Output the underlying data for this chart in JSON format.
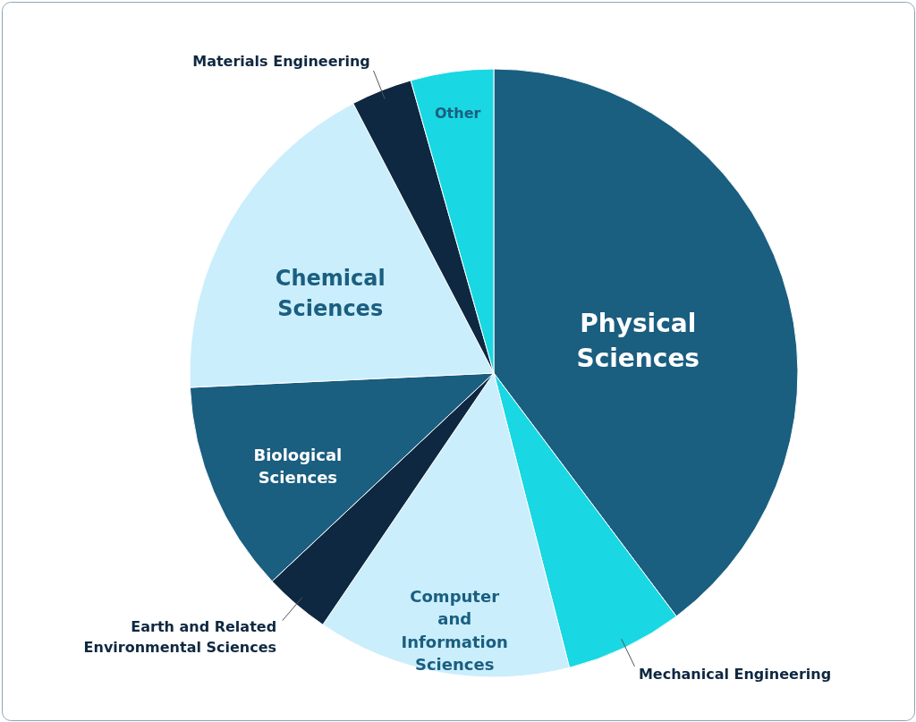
{
  "chart_data": {
    "type": "pie",
    "categories": [
      "Physical Sciences",
      "Mechanical Engineering",
      "Computer and Information Sciences",
      "Earth and Related Environmental Sciences",
      "Biological Sciences",
      "Chemical Sciences",
      "Materials Engineering",
      "Other"
    ],
    "values": [
      39.75,
      6.25,
      13.5,
      3.5,
      11.25,
      18.1,
      3.25,
      4.4
    ],
    "colors": [
      "#1a5e80",
      "#19d7e3",
      "#caeefb",
      "#0f2841",
      "#1a5e80",
      "#caeefb",
      "#0f2841",
      "#19d7e3"
    ]
  }
}
